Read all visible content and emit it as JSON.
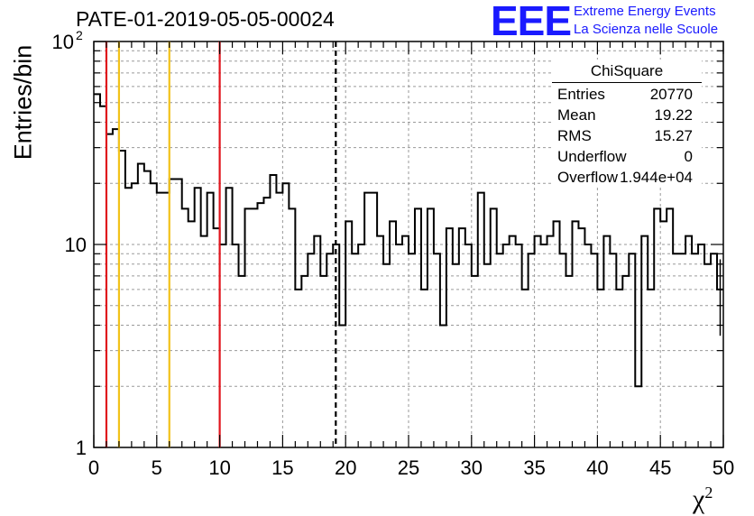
{
  "title": "PATE-01-2019-05-05-00024",
  "logo": {
    "text": "EEE",
    "line1": "Extreme Energy Events",
    "line2": "La Scienza nelle Scuole"
  },
  "stats": {
    "name": "ChiSquare",
    "rows": [
      {
        "k": "Entries",
        "v": "20770"
      },
      {
        "k": "Mean",
        "v": "19.22"
      },
      {
        "k": "RMS",
        "v": "15.27"
      },
      {
        "k": "Underflow",
        "v": "0"
      },
      {
        "k": "Overflow",
        "v": "1.944e+04"
      }
    ]
  },
  "colors": {
    "red_line": "#e0141c",
    "yellow_line": "#f2c21a",
    "hist": "#000000",
    "logo": "#1a1aff"
  },
  "chart_data": {
    "type": "step-histogram",
    "title": "PATE-01-2019-05-05-00024",
    "xlabel": "χ",
    "xlabel_sup": "2",
    "ylabel": "Entries/bin",
    "xlim": [
      0,
      50
    ],
    "ylim": [
      1,
      100
    ],
    "yscale": "log",
    "grid": true,
    "x_ticks": [
      "0",
      "5",
      "10",
      "15",
      "20",
      "25",
      "30",
      "35",
      "40",
      "45",
      "50"
    ],
    "y_ticks": [
      {
        "value": 1,
        "label": "1"
      },
      {
        "value": 10,
        "label": "10"
      },
      {
        "value": 100,
        "label": "10",
        "sup": "2"
      }
    ],
    "bin_width": 0.5,
    "bin_start": 0,
    "values": [
      55,
      48,
      35,
      37,
      29,
      19,
      20,
      25,
      23,
      20,
      18,
      18,
      21,
      21,
      15,
      13,
      19,
      11,
      18,
      12,
      10,
      19,
      10,
      7,
      15,
      15,
      16,
      17,
      22,
      18,
      20,
      15,
      6,
      7,
      9,
      11,
      7,
      9,
      10,
      4,
      13,
      9,
      10,
      18,
      18,
      11,
      8,
      13,
      10,
      11,
      9,
      15,
      6,
      15,
      9,
      4,
      12,
      8,
      12,
      10,
      7,
      18,
      8,
      15,
      9,
      10,
      11,
      10,
      6,
      9,
      11,
      10,
      11,
      13,
      9,
      7,
      13,
      12,
      10,
      9,
      6,
      11,
      9,
      6,
      7,
      9,
      2,
      11,
      6,
      15,
      13,
      15,
      9,
      9,
      11,
      9,
      10,
      8,
      9,
      6
    ],
    "vertical_lines": [
      {
        "x": 1,
        "color": "#e0141c",
        "style": "solid"
      },
      {
        "x": 2,
        "color": "#f2c21a",
        "style": "solid"
      },
      {
        "x": 6,
        "color": "#f2c21a",
        "style": "solid"
      },
      {
        "x": 10,
        "color": "#e0141c",
        "style": "solid"
      },
      {
        "x": 19.22,
        "color": "#000000",
        "style": "dashed"
      }
    ]
  }
}
